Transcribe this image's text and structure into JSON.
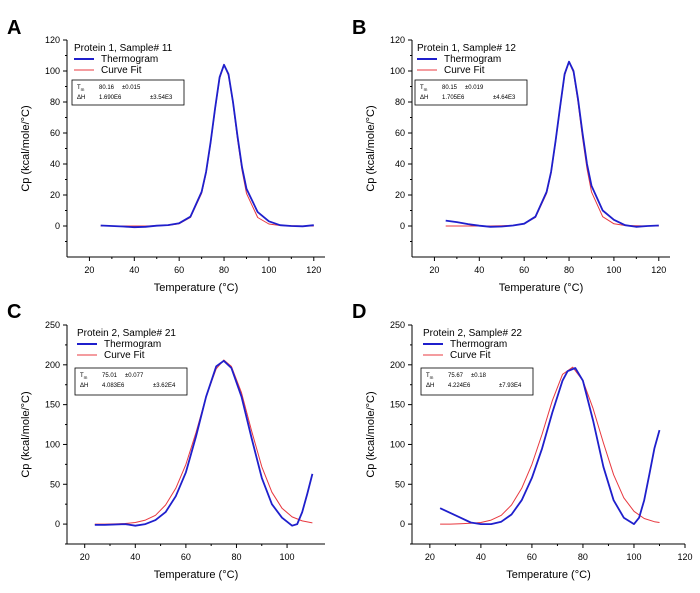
{
  "chart_data": [
    {
      "panel_label": "A",
      "type": "line",
      "title": "Protein 1, Sample# 11",
      "xlabel": "Temperature (°C)",
      "ylabel": "Cp (kcal/mole/°C)",
      "xlim": [
        10,
        125
      ],
      "ylim": [
        -20,
        120
      ],
      "xticks": [
        20,
        40,
        60,
        80,
        100,
        120
      ],
      "xticklabels": [
        "20",
        "40",
        "60",
        "80",
        "100",
        "120"
      ],
      "yticks": [
        0,
        20,
        40,
        60,
        80,
        100,
        120
      ],
      "yticklabels": [
        "0",
        "20",
        "40",
        "60",
        "80",
        "100",
        "120"
      ],
      "legend_position": "top-left",
      "legend": [
        {
          "name": "Thermogram",
          "color": "#1f1fcc"
        },
        {
          "name": "Curve Fit",
          "color": "#e8383f"
        }
      ],
      "fit_table": [
        {
          "param": "T",
          "sub": "m",
          "value": "80.16",
          "error": "±0.015"
        },
        {
          "param": "ΔH",
          "sub": "",
          "value": "1.690E6",
          "error": "±3.54E3"
        }
      ],
      "series": [
        {
          "name": "Thermogram",
          "x": [
            25,
            30,
            35,
            40,
            45,
            50,
            55,
            60,
            65,
            70,
            72,
            74,
            76,
            78,
            80,
            82,
            84,
            86,
            88,
            90,
            95,
            100,
            105,
            110,
            115,
            120
          ],
          "y": [
            0.3,
            0,
            -0.3,
            -0.8,
            -0.5,
            0.2,
            0.6,
            1.8,
            6,
            22,
            35,
            54,
            76,
            96,
            104,
            98,
            80,
            58,
            38,
            24,
            9,
            3,
            0.5,
            0,
            -0.2,
            0.5
          ]
        },
        {
          "name": "Curve Fit",
          "x": [
            25,
            30,
            35,
            40,
            45,
            50,
            55,
            60,
            65,
            70,
            72,
            74,
            76,
            78,
            80,
            82,
            84,
            86,
            88,
            90,
            95,
            100,
            105,
            110,
            115,
            120
          ],
          "y": [
            0,
            0,
            0,
            0,
            0,
            0.1,
            0.4,
            1.5,
            5.5,
            21,
            34,
            53,
            75,
            95,
            104.3,
            97,
            79,
            56,
            36,
            21,
            5.5,
            1.3,
            0.3,
            0.1,
            0,
            0
          ]
        }
      ]
    },
    {
      "panel_label": "B",
      "type": "line",
      "title": "Protein 1, Sample# 12",
      "xlabel": "Temperature (°C)",
      "ylabel": "Cp (kcal/mole/°C)",
      "xlim": [
        10,
        125
      ],
      "ylim": [
        -20,
        120
      ],
      "xticks": [
        20,
        40,
        60,
        80,
        100,
        120
      ],
      "xticklabels": [
        "20",
        "40",
        "60",
        "80",
        "100",
        "120"
      ],
      "yticks": [
        0,
        20,
        40,
        60,
        80,
        100,
        120
      ],
      "yticklabels": [
        "0",
        "20",
        "40",
        "60",
        "80",
        "100",
        "120"
      ],
      "legend_position": "top-left",
      "legend": [
        {
          "name": "Thermogram",
          "color": "#1f1fcc"
        },
        {
          "name": "Curve Fit",
          "color": "#e8383f"
        }
      ],
      "fit_table": [
        {
          "param": "T",
          "sub": "m",
          "value": "80.15",
          "error": "±0.019"
        },
        {
          "param": "ΔH",
          "sub": "",
          "value": "1.705E6",
          "error": "±4.64E3"
        }
      ],
      "series": [
        {
          "name": "Thermogram",
          "x": [
            25,
            30,
            35,
            40,
            45,
            50,
            55,
            60,
            65,
            70,
            72,
            74,
            76,
            78,
            80,
            82,
            84,
            86,
            88,
            90,
            95,
            100,
            105,
            110,
            115,
            120
          ],
          "y": [
            3.5,
            2.5,
            1.2,
            0.2,
            -0.5,
            -0.3,
            0.3,
            1.5,
            6,
            22,
            35,
            55,
            77,
            98,
            106,
            100,
            82,
            60,
            40,
            26,
            10,
            4,
            0.5,
            -0.5,
            0,
            0.3
          ]
        },
        {
          "name": "Curve Fit",
          "x": [
            25,
            30,
            35,
            40,
            45,
            50,
            55,
            60,
            65,
            70,
            72,
            74,
            76,
            78,
            80,
            82,
            84,
            86,
            88,
            90,
            95,
            100,
            105,
            110,
            115,
            120
          ],
          "y": [
            0,
            0,
            0,
            0,
            0,
            0.1,
            0.4,
            1.5,
            5.5,
            21,
            34,
            54,
            76,
            97,
            106,
            99,
            80,
            57,
            37,
            22,
            6,
            1.4,
            0.3,
            0.1,
            0,
            0
          ]
        }
      ]
    },
    {
      "panel_label": "C",
      "type": "line",
      "title": "Protein 2, Sample# 21",
      "xlabel": "Temperature (°C)",
      "ylabel": "Cp (kcal/mole/°C)",
      "xlim": [
        13,
        115
      ],
      "ylim": [
        -25,
        250
      ],
      "xticks": [
        20,
        40,
        60,
        80,
        100
      ],
      "xticklabels": [
        "20",
        "40",
        "60",
        "80",
        "100"
      ],
      "yticks": [
        0,
        50,
        100,
        150,
        200,
        250
      ],
      "yticklabels": [
        "0",
        "50",
        "100",
        "150",
        "200",
        "250"
      ],
      "legend_position": "top-left",
      "legend": [
        {
          "name": "Thermogram",
          "color": "#1f1fcc"
        },
        {
          "name": "Curve Fit",
          "color": "#e8383f"
        }
      ],
      "fit_table": [
        {
          "param": "T",
          "sub": "m",
          "value": "75.01",
          "error": "±0.077"
        },
        {
          "param": "ΔH",
          "sub": "",
          "value": "4.083E6",
          "error": "±3.62E4"
        }
      ],
      "series": [
        {
          "name": "Thermogram",
          "x": [
            24,
            28,
            32,
            36,
            40,
            44,
            48,
            52,
            56,
            60,
            64,
            68,
            72,
            75,
            78,
            82,
            86,
            90,
            94,
            98,
            102,
            104,
            106,
            108,
            110
          ],
          "y": [
            -1,
            -1,
            -0.5,
            0,
            -2,
            0,
            5,
            15,
            35,
            65,
            110,
            160,
            198,
            205,
            196,
            160,
            108,
            58,
            25,
            8,
            -2,
            0,
            15,
            38,
            63
          ]
        },
        {
          "name": "Curve Fit",
          "x": [
            24,
            28,
            32,
            36,
            40,
            44,
            48,
            52,
            56,
            60,
            64,
            68,
            72,
            75,
            78,
            82,
            86,
            90,
            94,
            98,
            102,
            106,
            110
          ],
          "y": [
            0,
            0,
            0.3,
            0.8,
            2,
            5,
            11,
            24,
            45,
            75,
            115,
            160,
            195,
            206,
            198,
            165,
            117,
            72,
            40,
            20,
            9,
            4,
            1.5
          ]
        }
      ]
    },
    {
      "panel_label": "D",
      "type": "line",
      "title": "Protein 2, Sample# 22",
      "xlabel": "Temperature (°C)",
      "ylabel": "Cp (kcal/mole/°C)",
      "xlim": [
        13,
        120
      ],
      "ylim": [
        -25,
        250
      ],
      "xticks": [
        20,
        40,
        60,
        80,
        100,
        120
      ],
      "xticklabels": [
        "20",
        "40",
        "60",
        "80",
        "100",
        "120"
      ],
      "yticks": [
        0,
        50,
        100,
        150,
        200,
        250
      ],
      "yticklabels": [
        "0",
        "50",
        "100",
        "150",
        "200",
        "250"
      ],
      "legend_position": "top-left",
      "legend": [
        {
          "name": "Thermogram",
          "color": "#1f1fcc"
        },
        {
          "name": "Curve Fit",
          "color": "#e8383f"
        }
      ],
      "fit_table": [
        {
          "param": "T",
          "sub": "m",
          "value": "75.67",
          "error": "±0.18"
        },
        {
          "param": "ΔH",
          "sub": "",
          "value": "4.224E6",
          "error": "±7.93E4"
        }
      ],
      "series": [
        {
          "name": "Thermogram",
          "x": [
            24,
            28,
            32,
            36,
            40,
            44,
            48,
            52,
            56,
            60,
            64,
            68,
            72,
            74,
            77,
            80,
            84,
            88,
            92,
            96,
            100,
            102,
            104,
            106,
            108,
            110
          ],
          "y": [
            20,
            14,
            8,
            2,
            0,
            0,
            3,
            12,
            30,
            58,
            95,
            140,
            180,
            192,
            196,
            180,
            130,
            72,
            30,
            8,
            0,
            8,
            30,
            62,
            95,
            118
          ]
        },
        {
          "name": "Curve Fit",
          "x": [
            24,
            28,
            32,
            36,
            40,
            44,
            48,
            52,
            56,
            60,
            64,
            68,
            72,
            76,
            80,
            84,
            88,
            92,
            96,
            100,
            104,
            108,
            110
          ],
          "y": [
            0,
            0,
            0.5,
            1,
            2,
            5,
            11,
            24,
            45,
            75,
            113,
            155,
            188,
            197,
            180,
            145,
            102,
            62,
            33,
            16,
            7,
            3,
            2
          ]
        }
      ]
    }
  ]
}
